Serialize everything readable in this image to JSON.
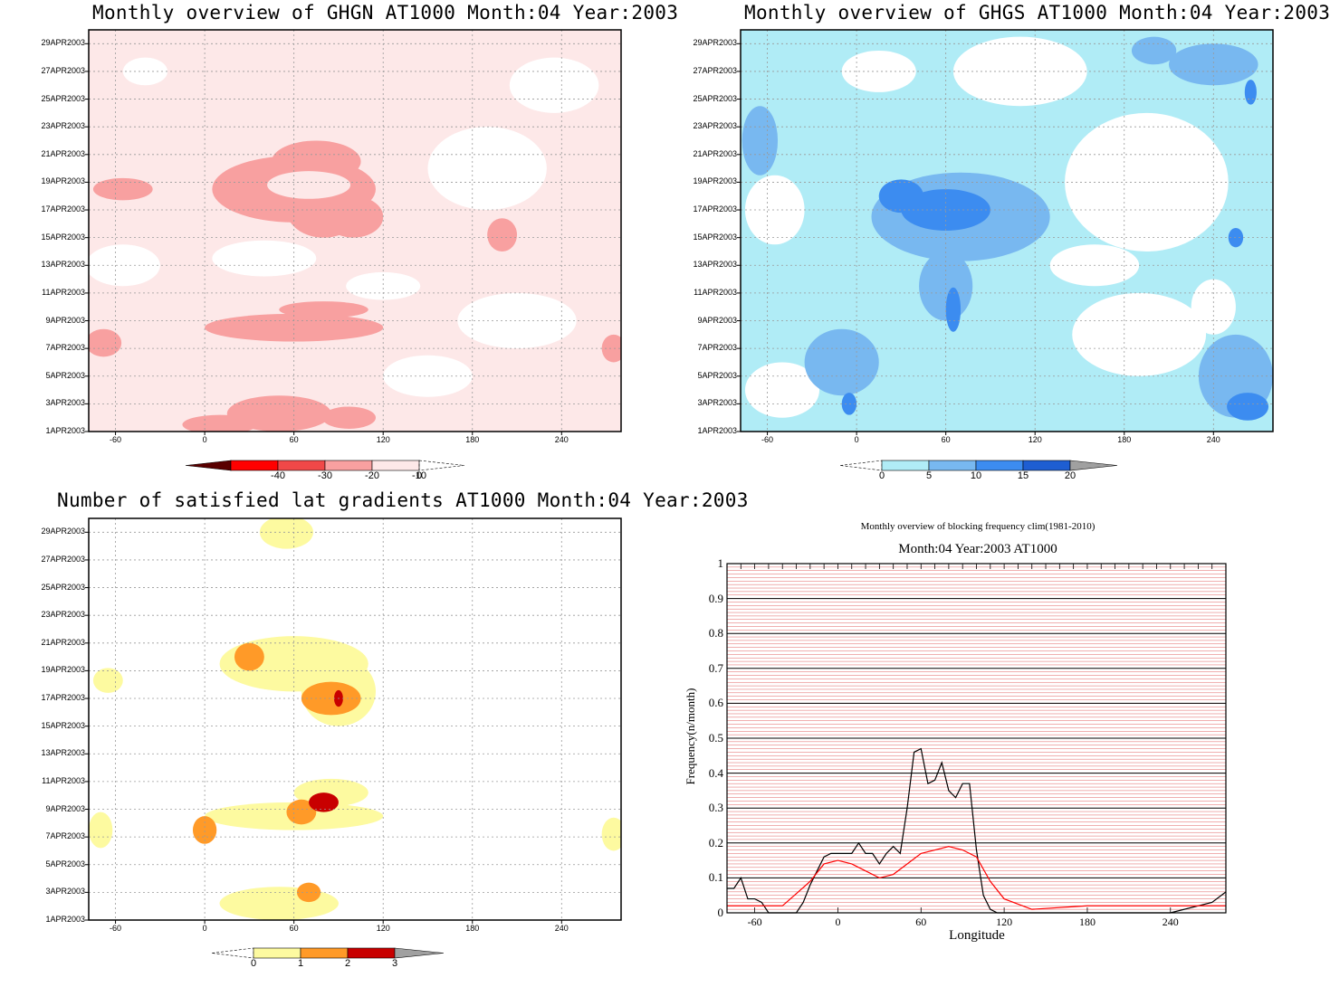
{
  "colors": {
    "ghgn": [
      "#5a0000",
      "#ff0000",
      "#f04848",
      "#f8a0a0",
      "#fde8e8"
    ],
    "ghgs": [
      "#b0ecf6",
      "#78b8f0",
      "#3c8cf0",
      "#1e5ed2",
      "#a0a0a0"
    ],
    "grad": [
      "#fdfaa0",
      "#ff9a28",
      "#c80000",
      "#a0a0a0"
    ],
    "freq_series": [
      "#000000",
      "#ff0000"
    ]
  },
  "chart_data": [
    {
      "type": "heatmap",
      "title": "Monthly overview of GHGN AT1000 Month:04 Year:2003",
      "xticks": [
        "-60",
        "0",
        "60",
        "120",
        "180",
        "240"
      ],
      "yticks": [
        "1APR2003",
        "3APR2003",
        "5APR2003",
        "7APR2003",
        "9APR2003",
        "11APR2003",
        "13APR2003",
        "15APR2003",
        "17APR2003",
        "19APR2003",
        "21APR2003",
        "23APR2003",
        "25APR2003",
        "27APR2003",
        "29APR2003"
      ],
      "colorbar": [
        "-40",
        "-30",
        "-20",
        "-10",
        "0"
      ],
      "x_range": [
        -78,
        280
      ],
      "y_range": [
        1,
        30
      ],
      "grid": true,
      "blobs": [
        {
          "lon": 60,
          "day": 18.5,
          "rlon": 55,
          "rday": 2.4,
          "level": 2
        },
        {
          "lon": 75,
          "day": 20.5,
          "rlon": 30,
          "rday": 1.5,
          "level": 2
        },
        {
          "lon": 80,
          "day": 17.0,
          "rlon": 25,
          "rday": 2.0,
          "level": 2
        },
        {
          "lon": -55,
          "day": 18.5,
          "rlon": 20,
          "rday": 0.8,
          "level": 2
        },
        {
          "lon": 200,
          "day": 15.2,
          "rlon": 10,
          "rday": 1.2,
          "level": 2
        },
        {
          "lon": 60,
          "day": 8.5,
          "rlon": 60,
          "rday": 1.0,
          "level": 2
        },
        {
          "lon": 80,
          "day": 9.8,
          "rlon": 30,
          "rday": 0.6,
          "level": 2
        },
        {
          "lon": -68,
          "day": 7.4,
          "rlon": 12,
          "rday": 1.0,
          "level": 2
        },
        {
          "lon": 275,
          "day": 7.0,
          "rlon": 8,
          "rday": 1.0,
          "level": 2
        },
        {
          "lon": 50,
          "day": 2.3,
          "rlon": 35,
          "rday": 1.3,
          "level": 2
        },
        {
          "lon": 10,
          "day": 1.5,
          "rlon": 25,
          "rday": 0.7,
          "level": 2
        },
        {
          "lon": 97,
          "day": 2.0,
          "rlon": 18,
          "rday": 0.8,
          "level": 2
        },
        {
          "lon": 100,
          "day": 16.5,
          "rlon": 20,
          "rday": 1.5,
          "level": 2
        }
      ]
    },
    {
      "type": "heatmap",
      "title": "Monthly overview of GHGS AT1000 Month:04 Year:2003",
      "xticks": [
        "-60",
        "0",
        "60",
        "120",
        "180",
        "240"
      ],
      "yticks": [
        "1APR2003",
        "3APR2003",
        "5APR2003",
        "7APR2003",
        "9APR2003",
        "11APR2003",
        "13APR2003",
        "15APR2003",
        "17APR2003",
        "19APR2003",
        "21APR2003",
        "23APR2003",
        "25APR2003",
        "27APR2003",
        "29APR2003"
      ],
      "colorbar": [
        "0",
        "5",
        "10",
        "15",
        "20"
      ],
      "x_range": [
        -78,
        280
      ],
      "y_range": [
        1,
        30
      ],
      "grid": true,
      "blobs": [
        {
          "lon": 70,
          "day": 16.5,
          "rlon": 60,
          "rday": 3.2,
          "level": 1
        },
        {
          "lon": 60,
          "day": 11.5,
          "rlon": 18,
          "rday": 2.5,
          "level": 1
        },
        {
          "lon": -10,
          "day": 6.0,
          "rlon": 25,
          "rday": 2.4,
          "level": 1
        },
        {
          "lon": -65,
          "day": 22.0,
          "rlon": 12,
          "rday": 2.5,
          "level": 1
        },
        {
          "lon": 255,
          "day": 5.0,
          "rlon": 25,
          "rday": 3.0,
          "level": 1
        },
        {
          "lon": 240,
          "day": 27.5,
          "rlon": 30,
          "rday": 1.5,
          "level": 1
        },
        {
          "lon": 200,
          "day": 28.5,
          "rlon": 15,
          "rday": 1.0,
          "level": 1
        },
        {
          "lon": 60,
          "day": 17.0,
          "rlon": 30,
          "rday": 1.5,
          "level": 2
        },
        {
          "lon": 30,
          "day": 18.0,
          "rlon": 15,
          "rday": 1.2,
          "level": 2
        },
        {
          "lon": 65,
          "day": 9.8,
          "rlon": 5,
          "rday": 1.6,
          "level": 2
        },
        {
          "lon": -5,
          "day": 3.0,
          "rlon": 5,
          "rday": 0.8,
          "level": 2
        },
        {
          "lon": 263,
          "day": 2.8,
          "rlon": 14,
          "rday": 1.0,
          "level": 2
        },
        {
          "lon": 255,
          "day": 15.0,
          "rlon": 5,
          "rday": 0.7,
          "level": 2
        },
        {
          "lon": 265,
          "day": 25.5,
          "rlon": 4,
          "rday": 0.9,
          "level": 2
        }
      ]
    },
    {
      "type": "heatmap",
      "title": "Number of satisfied lat gradients AT1000 Month:04 Year:2003",
      "xticks": [
        "-60",
        "0",
        "60",
        "120",
        "180",
        "240"
      ],
      "yticks": [
        "1APR2003",
        "3APR2003",
        "5APR2003",
        "7APR2003",
        "9APR2003",
        "11APR2003",
        "13APR2003",
        "15APR2003",
        "17APR2003",
        "19APR2003",
        "21APR2003",
        "23APR2003",
        "25APR2003",
        "27APR2003",
        "29APR2003"
      ],
      "colorbar": [
        "0",
        "1",
        "2",
        "3"
      ],
      "x_range": [
        -78,
        280
      ],
      "y_range": [
        1,
        30
      ],
      "grid": true,
      "blobs": [
        {
          "lon": 55,
          "day": 29.0,
          "rlon": 18,
          "rday": 1.2,
          "level": 0
        },
        {
          "lon": 60,
          "day": 19.5,
          "rlon": 50,
          "rday": 2.0,
          "level": 0
        },
        {
          "lon": 90,
          "day": 17.5,
          "rlon": 25,
          "rday": 2.5,
          "level": 0
        },
        {
          "lon": 60,
          "day": 8.5,
          "rlon": 60,
          "rday": 1.0,
          "level": 0
        },
        {
          "lon": 85,
          "day": 10.2,
          "rlon": 25,
          "rday": 1.0,
          "level": 0
        },
        {
          "lon": 50,
          "day": 2.2,
          "rlon": 40,
          "rday": 1.2,
          "level": 0
        },
        {
          "lon": -65,
          "day": 18.3,
          "rlon": 10,
          "rday": 0.9,
          "level": 0
        },
        {
          "lon": -70,
          "day": 7.5,
          "rlon": 8,
          "rday": 1.3,
          "level": 0
        },
        {
          "lon": 275,
          "day": 7.2,
          "rlon": 8,
          "rday": 1.2,
          "level": 0
        },
        {
          "lon": 30,
          "day": 20.0,
          "rlon": 10,
          "rday": 1.0,
          "level": 1
        },
        {
          "lon": 85,
          "day": 17.0,
          "rlon": 20,
          "rday": 1.2,
          "level": 1
        },
        {
          "lon": 65,
          "day": 8.8,
          "rlon": 10,
          "rday": 0.9,
          "level": 1
        },
        {
          "lon": 0,
          "day": 7.5,
          "rlon": 8,
          "rday": 1.0,
          "level": 1
        },
        {
          "lon": 70,
          "day": 3.0,
          "rlon": 8,
          "rday": 0.7,
          "level": 1
        },
        {
          "lon": 90,
          "day": 17.0,
          "rlon": 3,
          "rday": 0.6,
          "level": 2
        },
        {
          "lon": 80,
          "day": 9.5,
          "rlon": 10,
          "rday": 0.7,
          "level": 2
        }
      ]
    },
    {
      "type": "line",
      "title": "Monthly overview of blocking frequency clim(1981-2010)",
      "subtitle": "Month:04 Year:2003  AT1000",
      "xlabel": "Longitude",
      "ylabel": "Frequency(n/month)",
      "xticks": [
        "-60",
        "0",
        "60",
        "120",
        "180",
        "240"
      ],
      "yticks": [
        "0",
        "0.1",
        "0.2",
        "0.3",
        "0.4",
        "0.5",
        "0.6",
        "0.7",
        "0.8",
        "0.9",
        "1"
      ],
      "xlim": [
        -80,
        280
      ],
      "ylim": [
        0,
        1
      ],
      "series": [
        {
          "x": [
            -80,
            -75,
            -70,
            -65,
            -60,
            -55,
            -50,
            -40,
            -30,
            -25,
            -20,
            -15,
            -10,
            -5,
            0,
            5,
            10,
            15,
            20,
            25,
            30,
            35,
            40,
            45,
            50,
            55,
            60,
            65,
            70,
            75,
            80,
            85,
            90,
            95,
            100,
            105,
            110,
            115,
            120,
            125,
            130,
            180,
            240,
            270,
            280
          ],
          "values": [
            0.07,
            0.07,
            0.1,
            0.04,
            0.04,
            0.03,
            0,
            0,
            0,
            0.03,
            0.08,
            0.12,
            0.16,
            0.17,
            0.17,
            0.17,
            0.17,
            0.2,
            0.17,
            0.17,
            0.14,
            0.17,
            0.19,
            0.17,
            0.3,
            0.46,
            0.47,
            0.37,
            0.38,
            0.43,
            0.35,
            0.33,
            0.37,
            0.37,
            0.18,
            0.05,
            0.01,
            0,
            0,
            0,
            0,
            0,
            0,
            0.03,
            0.06
          ]
        },
        {
          "x": [
            -80,
            -60,
            -40,
            -20,
            -10,
            0,
            10,
            20,
            30,
            40,
            50,
            60,
            70,
            80,
            90,
            100,
            110,
            120,
            140,
            180,
            220,
            260,
            280
          ],
          "values": [
            0.02,
            0.02,
            0.02,
            0.09,
            0.14,
            0.15,
            0.14,
            0.12,
            0.1,
            0.11,
            0.14,
            0.17,
            0.18,
            0.19,
            0.18,
            0.16,
            0.09,
            0.04,
            0.01,
            0.02,
            0.02,
            0.02,
            0.02
          ]
        }
      ]
    }
  ]
}
